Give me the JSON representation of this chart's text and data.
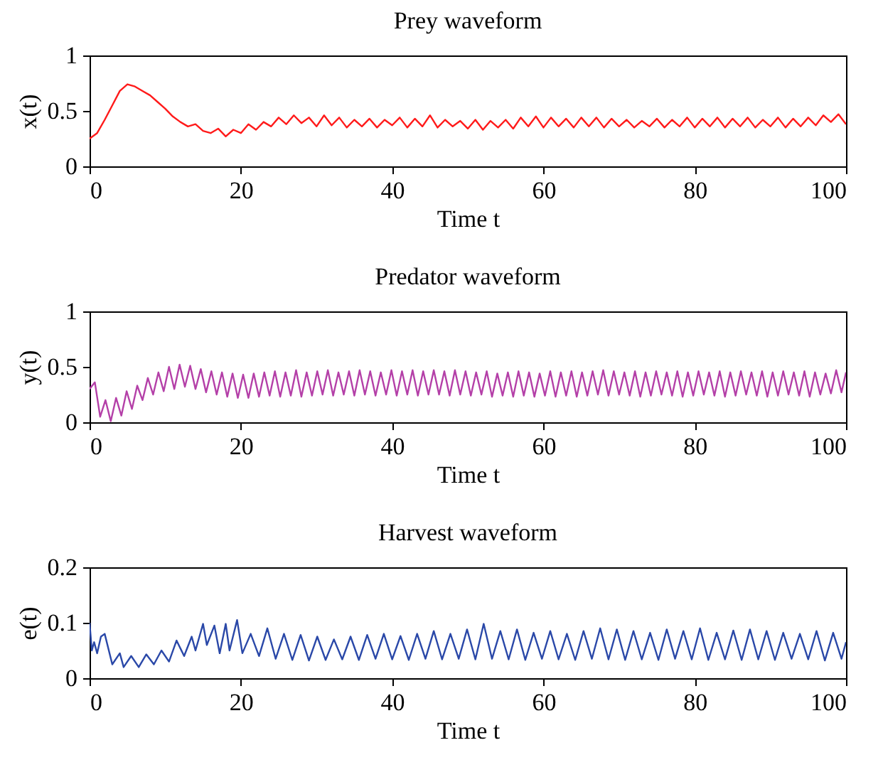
{
  "chart_data": [
    {
      "type": "line",
      "title": "Prey waveform",
      "xlabel": "Time t",
      "ylabel": "x(t)",
      "xlim": [
        0,
        100
      ],
      "xticks": [
        0,
        20,
        40,
        60,
        80,
        100
      ],
      "ylim": [
        0,
        1
      ],
      "yticks": [
        0,
        0.5,
        1
      ],
      "x": [
        0,
        1,
        2,
        3,
        4,
        5,
        6,
        7,
        8,
        9,
        10,
        11,
        12,
        13,
        14,
        15,
        16,
        17,
        18,
        19,
        20,
        21,
        22,
        23,
        24,
        25,
        26,
        27,
        28,
        29,
        30,
        31,
        32,
        33,
        34,
        35,
        36,
        37,
        38,
        39,
        40,
        41,
        42,
        43,
        44,
        45,
        46,
        47,
        48,
        49,
        50,
        51,
        52,
        53,
        54,
        55,
        56,
        57,
        58,
        59,
        60,
        61,
        62,
        63,
        64,
        65,
        66,
        67,
        68,
        69,
        70,
        71,
        72,
        73,
        74,
        75,
        76,
        77,
        78,
        79,
        80,
        81,
        82,
        83,
        84,
        85,
        86,
        87,
        88,
        89,
        90,
        91,
        92,
        93,
        94,
        95,
        96,
        97,
        98,
        99,
        100
      ],
      "series": [
        {
          "color": "#ff1a1a",
          "values": [
            0.25,
            0.3,
            0.42,
            0.55,
            0.68,
            0.74,
            0.72,
            0.68,
            0.64,
            0.58,
            0.52,
            0.45,
            0.4,
            0.36,
            0.38,
            0.32,
            0.3,
            0.34,
            0.27,
            0.33,
            0.3,
            0.38,
            0.33,
            0.4,
            0.36,
            0.44,
            0.38,
            0.46,
            0.39,
            0.44,
            0.36,
            0.46,
            0.37,
            0.44,
            0.35,
            0.42,
            0.36,
            0.43,
            0.35,
            0.42,
            0.37,
            0.44,
            0.35,
            0.43,
            0.36,
            0.46,
            0.35,
            0.42,
            0.36,
            0.41,
            0.34,
            0.42,
            0.33,
            0.41,
            0.35,
            0.42,
            0.34,
            0.44,
            0.36,
            0.45,
            0.35,
            0.44,
            0.36,
            0.43,
            0.35,
            0.44,
            0.36,
            0.44,
            0.35,
            0.43,
            0.36,
            0.42,
            0.35,
            0.41,
            0.36,
            0.43,
            0.35,
            0.42,
            0.36,
            0.44,
            0.35,
            0.43,
            0.36,
            0.44,
            0.35,
            0.43,
            0.36,
            0.44,
            0.35,
            0.42,
            0.36,
            0.44,
            0.35,
            0.43,
            0.36,
            0.44,
            0.37,
            0.46,
            0.4,
            0.47,
            0.38
          ]
        }
      ]
    },
    {
      "type": "line",
      "title": "Predator waveform",
      "xlabel": "Time t",
      "ylabel": "y(t)",
      "xlim": [
        0,
        100
      ],
      "xticks": [
        0,
        20,
        40,
        60,
        80,
        100
      ],
      "ylim": [
        0,
        1
      ],
      "yticks": [
        0,
        0.5,
        1
      ],
      "x": [
        0,
        0.7,
        1.4,
        2.1,
        2.8,
        3.5,
        4.2,
        4.9,
        5.6,
        6.3,
        7,
        7.7,
        8.4,
        9.1,
        9.8,
        10.5,
        11.2,
        11.9,
        12.6,
        13.3,
        14,
        14.7,
        15.4,
        16.1,
        16.8,
        17.5,
        18.2,
        18.9,
        19.6,
        20.3,
        21,
        21.7,
        22.4,
        23.1,
        23.8,
        24.5,
        25.2,
        25.9,
        26.6,
        27.3,
        28,
        28.7,
        29.4,
        30.1,
        30.8,
        31.5,
        32.2,
        32.9,
        33.6,
        34.3,
        35,
        35.7,
        36.4,
        37.1,
        37.8,
        38.5,
        39.2,
        39.9,
        40.6,
        41.3,
        42,
        42.7,
        43.4,
        44.1,
        44.8,
        45.5,
        46.2,
        46.9,
        47.6,
        48.3,
        49,
        49.7,
        50.4,
        51.1,
        51.8,
        52.5,
        53.2,
        53.9,
        54.6,
        55.3,
        56,
        56.7,
        57.4,
        58.1,
        58.8,
        59.5,
        60.2,
        60.9,
        61.6,
        62.3,
        63,
        63.7,
        64.4,
        65.1,
        65.8,
        66.5,
        67.2,
        67.9,
        68.6,
        69.3,
        70,
        70.7,
        71.4,
        72.1,
        72.8,
        73.5,
        74.2,
        74.9,
        75.6,
        76.3,
        77,
        77.7,
        78.4,
        79.1,
        79.8,
        80.5,
        81.2,
        81.9,
        82.6,
        83.3,
        84,
        84.7,
        85.4,
        86.1,
        86.8,
        87.5,
        88.2,
        88.9,
        89.6,
        90.3,
        91,
        91.7,
        92.4,
        93.1,
        93.8,
        94.5,
        95.2,
        95.9,
        96.6,
        97.3,
        98,
        98.7,
        99.4,
        100
      ],
      "series": [
        {
          "color": "#b440a8",
          "values": [
            0.3,
            0.36,
            0.05,
            0.2,
            0.01,
            0.22,
            0.06,
            0.28,
            0.12,
            0.33,
            0.2,
            0.4,
            0.25,
            0.45,
            0.28,
            0.5,
            0.3,
            0.52,
            0.32,
            0.51,
            0.3,
            0.48,
            0.27,
            0.46,
            0.25,
            0.45,
            0.23,
            0.44,
            0.22,
            0.43,
            0.22,
            0.44,
            0.23,
            0.45,
            0.24,
            0.46,
            0.23,
            0.45,
            0.24,
            0.47,
            0.23,
            0.45,
            0.24,
            0.46,
            0.25,
            0.47,
            0.24,
            0.45,
            0.25,
            0.46,
            0.24,
            0.47,
            0.25,
            0.46,
            0.24,
            0.45,
            0.25,
            0.47,
            0.24,
            0.46,
            0.25,
            0.47,
            0.24,
            0.46,
            0.25,
            0.47,
            0.25,
            0.46,
            0.24,
            0.47,
            0.25,
            0.46,
            0.24,
            0.45,
            0.25,
            0.46,
            0.23,
            0.44,
            0.24,
            0.45,
            0.23,
            0.46,
            0.24,
            0.45,
            0.23,
            0.44,
            0.24,
            0.46,
            0.23,
            0.45,
            0.24,
            0.46,
            0.23,
            0.45,
            0.24,
            0.46,
            0.25,
            0.47,
            0.24,
            0.46,
            0.25,
            0.45,
            0.24,
            0.46,
            0.23,
            0.45,
            0.24,
            0.46,
            0.25,
            0.45,
            0.24,
            0.46,
            0.23,
            0.45,
            0.24,
            0.46,
            0.25,
            0.45,
            0.24,
            0.46,
            0.23,
            0.45,
            0.24,
            0.46,
            0.25,
            0.45,
            0.24,
            0.46,
            0.23,
            0.45,
            0.24,
            0.46,
            0.25,
            0.45,
            0.24,
            0.46,
            0.23,
            0.45,
            0.25,
            0.44,
            0.26,
            0.47,
            0.27,
            0.45
          ]
        }
      ]
    },
    {
      "type": "line",
      "title": "Harvest waveform",
      "xlabel": "Time t",
      "ylabel": "e(t)",
      "xlim": [
        0,
        100
      ],
      "xticks": [
        0,
        20,
        40,
        60,
        80,
        100
      ],
      "ylim": [
        0,
        0.2
      ],
      "yticks": [
        0,
        0.1,
        0.2
      ],
      "x": [
        0,
        0.3,
        0.6,
        1,
        1.5,
        2,
        3,
        4,
        4.5,
        5.5,
        6.5,
        7.5,
        8.5,
        9.5,
        10.5,
        11.5,
        12.5,
        13.5,
        14,
        15,
        15.5,
        16.5,
        17.2,
        18,
        18.5,
        19.5,
        20.2,
        21.3,
        22.4,
        23.5,
        24.6,
        25.7,
        26.8,
        27.9,
        29,
        30.1,
        31.2,
        32.3,
        33.4,
        34.5,
        35.6,
        36.7,
        37.8,
        38.9,
        40,
        41.1,
        42.2,
        43.3,
        44.4,
        45.5,
        46.6,
        47.7,
        48.8,
        49.9,
        51,
        52.1,
        53.2,
        54.3,
        55.4,
        56.5,
        57.6,
        58.7,
        59.8,
        60.9,
        62,
        63.1,
        64.2,
        65.3,
        66.4,
        67.5,
        68.6,
        69.7,
        70.8,
        71.9,
        73,
        74.1,
        75.2,
        76.3,
        77.4,
        78.5,
        79.6,
        80.7,
        81.8,
        82.9,
        84,
        85.1,
        86.2,
        87.3,
        88.4,
        89.5,
        90.6,
        91.7,
        92.8,
        93.9,
        95,
        96.1,
        97.2,
        98.3,
        99.4,
        100
      ],
      "series": [
        {
          "color": "#2a48a8",
          "values": [
            0.1,
            0.05,
            0.065,
            0.045,
            0.075,
            0.08,
            0.025,
            0.045,
            0.02,
            0.04,
            0.02,
            0.043,
            0.025,
            0.05,
            0.03,
            0.068,
            0.04,
            0.075,
            0.05,
            0.098,
            0.06,
            0.095,
            0.045,
            0.098,
            0.05,
            0.105,
            0.045,
            0.08,
            0.04,
            0.09,
            0.035,
            0.08,
            0.033,
            0.078,
            0.032,
            0.075,
            0.033,
            0.07,
            0.034,
            0.075,
            0.033,
            0.078,
            0.035,
            0.08,
            0.034,
            0.076,
            0.033,
            0.08,
            0.035,
            0.085,
            0.034,
            0.08,
            0.035,
            0.088,
            0.034,
            0.098,
            0.035,
            0.085,
            0.034,
            0.088,
            0.033,
            0.082,
            0.035,
            0.085,
            0.034,
            0.08,
            0.033,
            0.085,
            0.035,
            0.09,
            0.034,
            0.088,
            0.033,
            0.085,
            0.034,
            0.082,
            0.033,
            0.088,
            0.035,
            0.085,
            0.034,
            0.09,
            0.033,
            0.082,
            0.034,
            0.086,
            0.033,
            0.088,
            0.034,
            0.085,
            0.033,
            0.082,
            0.035,
            0.08,
            0.034,
            0.085,
            0.032,
            0.082,
            0.035,
            0.065
          ]
        }
      ]
    }
  ]
}
